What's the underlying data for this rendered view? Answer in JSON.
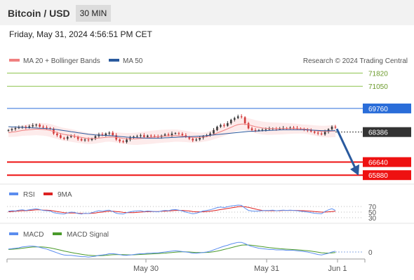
{
  "header": {
    "title": "Bitcoin / USD",
    "timeframe": "30 MIN",
    "datetime": "Friday, May 31, 2024 4:56:51 PM CET"
  },
  "colors": {
    "ma20": "#f08080",
    "ma50": "#2a5a9e",
    "support": "#ee1111",
    "resistance_blue": "#2a6dd9",
    "resistance_green": "#8bc34a",
    "price_badge": "#333333",
    "rsi": "#5b8def",
    "rsi_ma": "#dd2222",
    "macd": "#5b8def",
    "macd_signal": "#4a9a2a",
    "arrow": "#2a5a9e"
  },
  "legend": {
    "ma20_label": "MA 20 + Bollinger Bands",
    "ma50_label": "MA 50",
    "credit": "Research © 2024 Trading Central"
  },
  "rsi_legend": {
    "rsi": "RSI",
    "ma": "9MA"
  },
  "macd_legend": {
    "macd": "MACD",
    "signal": "MACD Signal"
  },
  "chart_data": {
    "type": "candlestick",
    "x_ticks": [
      "May 30",
      "May 31",
      "Jun 1"
    ],
    "price_axis_range": [
      65400,
      72200
    ],
    "levels": [
      {
        "value": "71820",
        "kind": "resistance",
        "color": "#8bc34a"
      },
      {
        "value": "71050",
        "kind": "resistance",
        "color": "#8bc34a"
      },
      {
        "value": "69760",
        "kind": "pivot",
        "color": "#2a6dd9"
      },
      {
        "value": "66640",
        "kind": "support",
        "color": "#ee1111"
      },
      {
        "value": "65880",
        "kind": "support",
        "color": "#ee1111"
      }
    ],
    "last_price": "68386",
    "close": [
      68500,
      68560,
      68620,
      68650,
      68700,
      68640,
      68720,
      68780,
      68820,
      68700,
      68650,
      68620,
      68580,
      68300,
      68200,
      68050,
      68000,
      68100,
      68150,
      68120,
      67980,
      67900,
      67950,
      67920,
      68000,
      68150,
      68250,
      68200,
      68300,
      68350,
      68200,
      67950,
      67850,
      67800,
      67950,
      68050,
      68120,
      68150,
      68200,
      68100,
      68180,
      68150,
      68120,
      68100,
      68180,
      68250,
      68200,
      68300,
      68320,
      68280,
      68200,
      68100,
      68000,
      67900,
      67950,
      68050,
      68150,
      68200,
      68300,
      68500,
      68700,
      68800,
      68750,
      68900,
      69100,
      69200,
      69300,
      69250,
      68900,
      68600,
      68500,
      68480,
      68500,
      68520,
      68550,
      68580,
      68600,
      68560,
      68580,
      68620,
      68600,
      68640,
      68620,
      68600,
      68560,
      68520,
      68480,
      68420,
      68350,
      68300,
      68250,
      68400,
      68550,
      68700,
      68650
    ],
    "ma20": [
      68350,
      68380,
      68400,
      68440,
      68480,
      68500,
      68520,
      68540,
      68560,
      68550,
      68540,
      68520,
      68480,
      68420,
      68360,
      68300,
      68250,
      68220,
      68190,
      68150,
      68110,
      68080,
      68040,
      68010,
      68010,
      68020,
      68040,
      68060,
      68080,
      68100,
      68090,
      68070,
      68050,
      68020,
      68000,
      67990,
      67990,
      68000,
      68020,
      68040,
      68060,
      68080,
      68100,
      68120,
      68140,
      68150,
      68160,
      68170,
      68180,
      68170,
      68150,
      68130,
      68100,
      68080,
      68070,
      68070,
      68090,
      68120,
      68180,
      68250,
      68330,
      68410,
      68490,
      68570,
      68660,
      68750,
      68820,
      68850,
      68850,
      68810,
      68760,
      68700,
      68660,
      68620,
      68600,
      68590,
      68590,
      68590,
      68590,
      68590,
      68590,
      68590,
      68590,
      68580,
      68570,
      68560,
      68540,
      68510,
      68480,
      68450,
      68430,
      68420,
      68420,
      68440,
      68450
    ],
    "ma50": [
      68700,
      68690,
      68680,
      68670,
      68660,
      68650,
      68640,
      68630,
      68620,
      68610,
      68600,
      68590,
      68570,
      68550,
      68530,
      68500,
      68470,
      68440,
      68410,
      68380,
      68350,
      68320,
      68290,
      68260,
      68240,
      68220,
      68210,
      68200,
      68190,
      68180,
      68170,
      68150,
      68130,
      68110,
      68090,
      68080,
      68070,
      68060,
      68050,
      68040,
      68030,
      68030,
      68030,
      68030,
      68040,
      68050,
      68060,
      68070,
      68080,
      68090,
      68100,
      68110,
      68120,
      68130,
      68140,
      68150,
      68160,
      68180,
      68200,
      68220,
      68240,
      68260,
      68280,
      68300,
      68320,
      68340,
      68360,
      68380,
      68400,
      68420,
      68430,
      68440,
      68450,
      68460,
      68470,
      68480,
      68490,
      68500,
      68510,
      68520,
      68520,
      68520,
      68520,
      68520,
      68520,
      68520,
      68510,
      68500,
      68490,
      68480,
      68470,
      68460,
      68460,
      68460,
      68470
    ],
    "rsi": [
      53,
      55,
      54,
      57,
      58,
      56,
      58,
      60,
      62,
      59,
      56,
      55,
      54,
      48,
      46,
      44,
      43,
      47,
      50,
      49,
      45,
      43,
      46,
      45,
      48,
      52,
      55,
      53,
      56,
      57,
      52,
      46,
      44,
      43,
      48,
      51,
      53,
      54,
      55,
      52,
      54,
      53,
      52,
      51,
      54,
      56,
      55,
      58,
      59,
      57,
      54,
      50,
      47,
      44,
      46,
      50,
      54,
      56,
      58,
      62,
      66,
      68,
      66,
      69,
      72,
      73,
      75,
      74,
      64,
      56,
      54,
      53,
      54,
      55,
      56,
      56,
      57,
      55,
      56,
      57,
      56,
      57,
      56,
      55,
      53,
      52,
      50,
      48,
      46,
      45,
      44,
      52,
      58,
      62,
      56
    ],
    "rsi_ma": [
      51,
      52,
      53,
      54,
      55,
      55,
      56,
      57,
      58,
      58,
      57,
      57,
      56,
      54,
      52,
      50,
      48,
      47,
      47,
      47,
      46,
      45,
      45,
      45,
      46,
      47,
      49,
      50,
      52,
      53,
      53,
      52,
      51,
      49,
      48,
      48,
      48,
      49,
      50,
      51,
      52,
      52,
      52,
      52,
      53,
      53,
      54,
      55,
      56,
      56,
      56,
      55,
      54,
      52,
      51,
      51,
      51,
      52,
      53,
      55,
      57,
      59,
      61,
      63,
      65,
      67,
      69,
      70,
      69,
      67,
      64,
      61,
      58,
      56,
      55,
      55,
      55,
      55,
      55,
      56,
      56,
      56,
      56,
      56,
      55,
      55,
      54,
      53,
      52,
      51,
      50,
      50,
      51,
      52,
      53
    ],
    "macd": [
      70,
      80,
      90,
      100,
      120,
      130,
      140,
      140,
      130,
      110,
      90,
      70,
      40,
      10,
      -20,
      -50,
      -70,
      -80,
      -80,
      -90,
      -100,
      -110,
      -110,
      -120,
      -110,
      -100,
      -80,
      -70,
      -60,
      -40,
      -40,
      -50,
      -60,
      -80,
      -80,
      -70,
      -60,
      -50,
      -40,
      -40,
      -30,
      -30,
      -20,
      -20,
      -10,
      0,
      10,
      20,
      30,
      20,
      10,
      0,
      -10,
      -30,
      -30,
      -20,
      -10,
      0,
      20,
      50,
      80,
      110,
      140,
      160,
      190,
      210,
      230,
      230,
      200,
      160,
      130,
      110,
      90,
      80,
      70,
      60,
      60,
      50,
      50,
      50,
      40,
      40,
      40,
      30,
      20,
      10,
      0,
      -20,
      -40,
      -60,
      -70,
      -50,
      -30,
      0,
      20
    ],
    "macd_signal": [
      60,
      65,
      72,
      80,
      90,
      100,
      110,
      118,
      122,
      122,
      118,
      110,
      98,
      82,
      64,
      44,
      24,
      6,
      -10,
      -26,
      -40,
      -54,
      -66,
      -77,
      -84,
      -88,
      -88,
      -85,
      -80,
      -72,
      -65,
      -62,
      -61,
      -64,
      -67,
      -68,
      -67,
      -64,
      -59,
      -55,
      -50,
      -46,
      -41,
      -37,
      -32,
      -26,
      -19,
      -11,
      -3,
      2,
      4,
      3,
      0,
      -6,
      -11,
      -13,
      -12,
      -10,
      -4,
      7,
      22,
      40,
      60,
      80,
      102,
      123,
      144,
      161,
      169,
      167,
      160,
      150,
      138,
      127,
      115,
      104,
      95,
      86,
      79,
      73,
      67,
      61,
      57,
      52,
      46,
      39,
      31,
      21,
      9,
      -5,
      -18,
      -24,
      -25,
      -20,
      -12
    ],
    "rsi_levels": [
      70,
      50,
      30
    ],
    "macd_zero": "0"
  }
}
